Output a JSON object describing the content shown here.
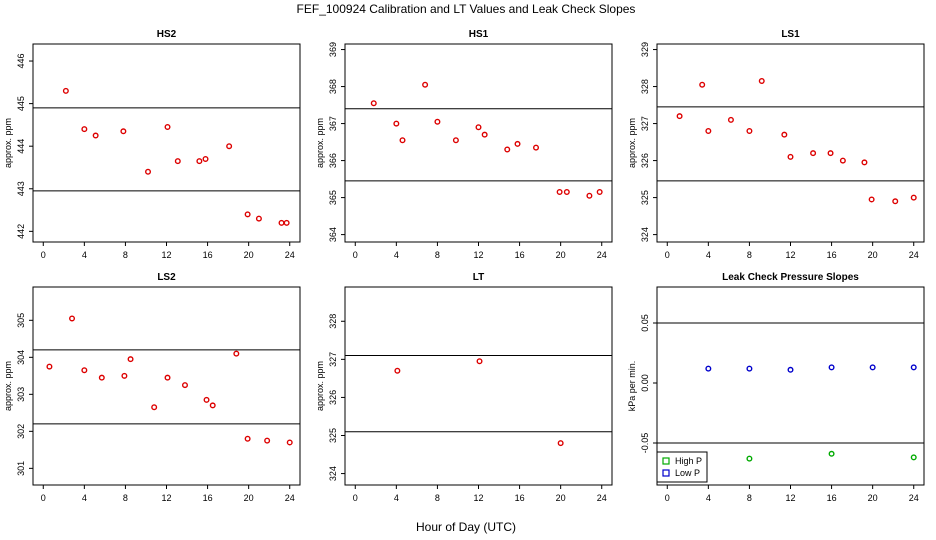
{
  "title": "FEF_100924  Calibration and LT Values and Leak Check Slopes",
  "x_axis_label": "Hour of Day (UTC)",
  "colors": {
    "points": "#dd0000",
    "high_p": "#00aa00",
    "low_p": "#0000cc",
    "line": "#000000"
  },
  "chart_data": [
    {
      "type": "scatter",
      "title": "HS2",
      "ylabel": "approx. ppm",
      "xlim": [
        -1,
        25
      ],
      "ylim": [
        441.75,
        446.4
      ],
      "xticks": [
        0,
        4,
        8,
        12,
        16,
        20,
        24
      ],
      "yticks": [
        442,
        443,
        444,
        445,
        446
      ],
      "hlines": [
        444.9,
        442.95
      ],
      "x": [
        2.2,
        4.0,
        5.1,
        7.8,
        10.2,
        12.1,
        13.1,
        15.2,
        15.8,
        18.1,
        19.9,
        21.0,
        23.2,
        23.7
      ],
      "y": [
        445.3,
        444.4,
        444.25,
        444.35,
        443.4,
        444.45,
        443.65,
        443.65,
        443.7,
        444.0,
        442.4,
        442.3,
        442.2,
        442.2
      ]
    },
    {
      "type": "scatter",
      "title": "HS1",
      "ylabel": "approx. ppm",
      "xlim": [
        -1,
        25
      ],
      "ylim": [
        363.8,
        369.15
      ],
      "xticks": [
        0,
        4,
        8,
        12,
        16,
        20,
        24
      ],
      "yticks": [
        364,
        365,
        366,
        367,
        368,
        369
      ],
      "hlines": [
        367.4,
        365.45
      ],
      "x": [
        1.8,
        4.0,
        4.6,
        6.8,
        8.0,
        9.8,
        12.0,
        12.6,
        14.8,
        15.8,
        17.6,
        19.9,
        20.6,
        22.8,
        23.8
      ],
      "y": [
        367.55,
        367.0,
        366.55,
        368.05,
        367.05,
        366.55,
        366.9,
        366.7,
        366.3,
        366.45,
        366.35,
        365.15,
        365.15,
        365.05,
        365.15
      ]
    },
    {
      "type": "scatter",
      "title": "LS1",
      "ylabel": "approx. ppm",
      "xlim": [
        -1,
        25
      ],
      "ylim": [
        323.8,
        329.15
      ],
      "xticks": [
        0,
        4,
        8,
        12,
        16,
        20,
        24
      ],
      "yticks": [
        324,
        325,
        326,
        327,
        328,
        329
      ],
      "hlines": [
        327.45,
        325.45
      ],
      "x": [
        1.2,
        3.4,
        4.0,
        6.2,
        8.0,
        9.2,
        11.4,
        12.0,
        14.2,
        15.9,
        17.1,
        19.2,
        19.9,
        22.2,
        24.0
      ],
      "y": [
        327.2,
        328.05,
        326.8,
        327.1,
        326.8,
        328.15,
        326.7,
        326.1,
        326.2,
        326.2,
        326.0,
        325.95,
        324.95,
        324.9,
        325.0
      ]
    },
    {
      "type": "scatter",
      "title": "LS2",
      "ylabel": "approx. ppm",
      "xlim": [
        -1,
        25
      ],
      "ylim": [
        300.55,
        305.9
      ],
      "xticks": [
        0,
        4,
        8,
        12,
        16,
        20,
        24
      ],
      "yticks": [
        301,
        302,
        303,
        304,
        305
      ],
      "hlines": [
        304.2,
        302.2
      ],
      "x": [
        0.6,
        2.8,
        4.0,
        5.7,
        7.9,
        8.5,
        10.8,
        12.1,
        13.8,
        15.9,
        16.5,
        18.8,
        19.9,
        21.8,
        24.0
      ],
      "y": [
        303.75,
        305.05,
        303.65,
        303.45,
        303.5,
        303.95,
        302.65,
        303.45,
        303.25,
        302.85,
        302.7,
        304.1,
        301.8,
        301.75,
        301.7
      ]
    },
    {
      "type": "scatter",
      "title": "LT",
      "ylabel": "approx. ppm",
      "xlim": [
        -1,
        25
      ],
      "ylim": [
        323.7,
        328.9
      ],
      "xticks": [
        0,
        4,
        8,
        12,
        16,
        20,
        24
      ],
      "yticks": [
        324,
        325,
        326,
        327,
        328
      ],
      "hlines": [
        327.1,
        325.1
      ],
      "x": [
        4.1,
        12.1,
        20.0
      ],
      "y": [
        326.7,
        326.95,
        324.8
      ]
    },
    {
      "type": "scatter",
      "title": "Leak Check Pressure Slopes",
      "ylabel": "kPa per min.",
      "xlim": [
        -1,
        25
      ],
      "ylim": [
        -0.085,
        0.08
      ],
      "xticks": [
        0,
        4,
        8,
        12,
        16,
        20,
        24
      ],
      "yticks": [
        -0.05,
        0.0,
        0.05
      ],
      "ytick_labels": [
        "-0.05",
        "0.00",
        "0.05"
      ],
      "hlines": [
        0.05,
        -0.05
      ],
      "legend": {
        "position": "bottom-left",
        "entries": [
          "High P",
          "Low P"
        ]
      },
      "series": [
        {
          "name": "High P",
          "x": [
            8,
            16,
            24
          ],
          "y": [
            -0.063,
            -0.059,
            -0.062
          ]
        },
        {
          "name": "Low P",
          "x": [
            4,
            8,
            12,
            16,
            20,
            24
          ],
          "y": [
            0.012,
            0.012,
            0.011,
            0.013,
            0.013,
            0.013
          ]
        }
      ]
    }
  ]
}
